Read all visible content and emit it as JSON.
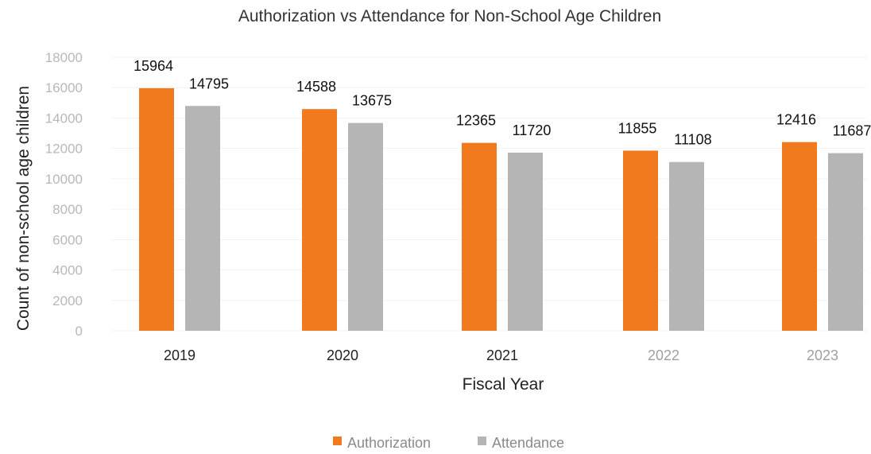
{
  "chart_data": {
    "type": "bar",
    "title": "Authorization vs Attendance for Non-School Age Children",
    "xlabel": "Fiscal Year",
    "ylabel": "Count of non-school age children",
    "categories": [
      "2019",
      "2020",
      "2021",
      "2022",
      "2023"
    ],
    "series": [
      {
        "name": "Authorization",
        "values": [
          15964,
          14588,
          12365,
          11855,
          12416
        ],
        "color": "#f07a1d"
      },
      {
        "name": "Attendance",
        "values": [
          14795,
          13675,
          11720,
          11108,
          11687
        ],
        "color": "#b5b5b5"
      }
    ],
    "ylim": [
      0,
      18000
    ],
    "yticks": [
      "0",
      "2000",
      "4000",
      "6000",
      "8000",
      "10000",
      "12000",
      "14000",
      "16000",
      "18000"
    ],
    "grid": true,
    "legend_position": "bottom-center"
  }
}
